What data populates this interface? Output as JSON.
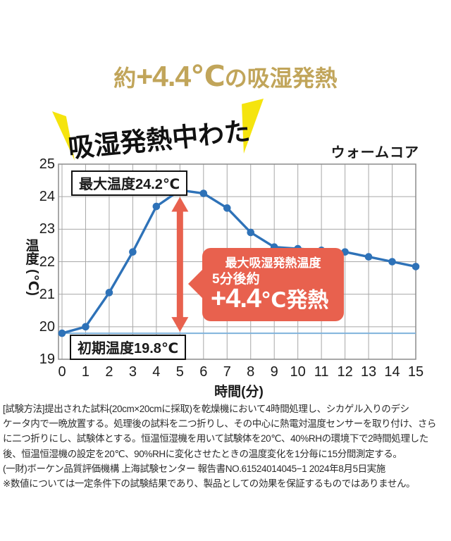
{
  "title": {
    "prefix": "約",
    "highlight": "+4.4℃",
    "suffix": "の吸湿発熱"
  },
  "headline": {
    "text": "吸湿発熱中わた"
  },
  "product_label": "ウォームコア",
  "chart_data": {
    "type": "line",
    "xlabel": "時間(分)",
    "ylabel": "温度(℃)",
    "ylabel_main": "温度",
    "ylabel_unit": "(℃)",
    "x": [
      0,
      1,
      2,
      3,
      4,
      5,
      6,
      7,
      8,
      9,
      10,
      11,
      12,
      13,
      14,
      15
    ],
    "series": [
      {
        "name": "ウォームコア",
        "values": [
          19.8,
          20.0,
          21.05,
          22.3,
          23.7,
          24.2,
          24.1,
          23.65,
          22.9,
          22.45,
          22.4,
          22.35,
          22.3,
          22.15,
          22.0,
          21.85
        ]
      }
    ],
    "baseline": {
      "value": 19.8,
      "label": "初期温度19.8℃"
    },
    "xlim": [
      0,
      15
    ],
    "ylim": [
      19,
      25
    ],
    "xticks": [
      0,
      1,
      2,
      3,
      4,
      5,
      6,
      7,
      8,
      9,
      10,
      11,
      12,
      13,
      14,
      15
    ],
    "yticks": [
      19,
      20,
      21,
      22,
      23,
      24,
      25
    ],
    "grid": true,
    "legend": "none"
  },
  "annotations": {
    "max_temp_label": "最大温度24.2℃",
    "initial_temp_label": "初期温度19.8℃",
    "callout": {
      "line1": "最大吸湿発熱温度",
      "line2": "5分後約",
      "value": "+4.4",
      "unit": "℃",
      "suffix": "発熱"
    },
    "arrow": {
      "x": 5,
      "from_temp": 19.8,
      "to_temp": 24.1
    }
  },
  "footer": {
    "lines": [
      "[試験方法]提出された試料(20cm×20cmに採取)を乾燥機において4時間処理し、シカゲル入りのデシ",
      "ケータ内で一晩放置する。処理後の試料を二つ折りし、その中心に熱電対温度センサーを取り付け、さら",
      "に二つ折りにし、試験体とする。恒温恒湿機を用いて試験体を20℃、40%RHの環境下で2時間処理した",
      "後、恒温恒湿機の設定を20℃、90%RHに変化させたときの温度変化を1分毎に15分間測定する。",
      "(一財)ボーケン品質評価機構  上海試験センター  報告書NO.61524014045−1  2024年8月5日実施",
      "※数値については一定条件下の試験結果であり、製品としての効果を保証するものではありません。"
    ]
  },
  "colors": {
    "gold": "#c1a55a",
    "flash_yellow": "#f5e40e",
    "line_blue": "#2e72b8",
    "baseline_blue": "#7fb2dc",
    "callout_red": "#e8614e",
    "grid_gray": "#a8a8a8",
    "frame_gray": "#8c8c8c"
  }
}
